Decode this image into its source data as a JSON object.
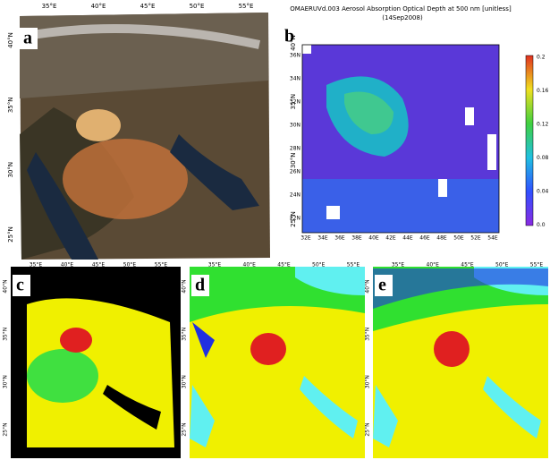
{
  "panel_a": {
    "label": "a",
    "lon_labels": [
      "35°E",
      "40°E",
      "45°E",
      "50°E",
      "55°E"
    ],
    "lat_labels": [
      "40°N",
      "35°N",
      "30°N",
      "25°N"
    ]
  },
  "panel_b": {
    "label": "b",
    "title": "OMAERUVd.003 Aerosol Absorption Optical Depth at 500 nm [unitless]",
    "date": "(14Sep2008)",
    "lat_labels": [
      "40°N",
      "35°N",
      "30°N",
      "25°N"
    ],
    "y_labels": [
      "36N",
      "34N",
      "32N",
      "30N",
      "28N",
      "26N",
      "24N",
      "22N"
    ],
    "x_labels": [
      "32E",
      "34E",
      "36E",
      "38E",
      "40E",
      "42E",
      "44E",
      "46E",
      "48E",
      "50E",
      "52E",
      "54E"
    ],
    "colorbar_labels": [
      "0.2",
      "0.16",
      "0.12",
      "0.08",
      "0.04",
      "0.0"
    ]
  },
  "panel_c": {
    "label": "c",
    "lon_labels": [
      "35°E",
      "40°E",
      "45°E",
      "50°E",
      "55°E"
    ],
    "lat_labels": [
      "40°N",
      "35°N",
      "30°N",
      "25°N"
    ]
  },
  "panel_d": {
    "label": "d",
    "lon_labels": [
      "35°E",
      "40°E",
      "45°E",
      "50°E",
      "55°E"
    ],
    "lat_labels": [
      "40°N",
      "35°N",
      "30°N",
      "25°N"
    ]
  },
  "panel_e": {
    "label": "e",
    "lon_labels": [
      "35°E",
      "40°E",
      "45°E",
      "50°E",
      "55°E"
    ],
    "lat_labels": [
      "40°N",
      "35°N",
      "30°N",
      "25°N"
    ]
  }
}
